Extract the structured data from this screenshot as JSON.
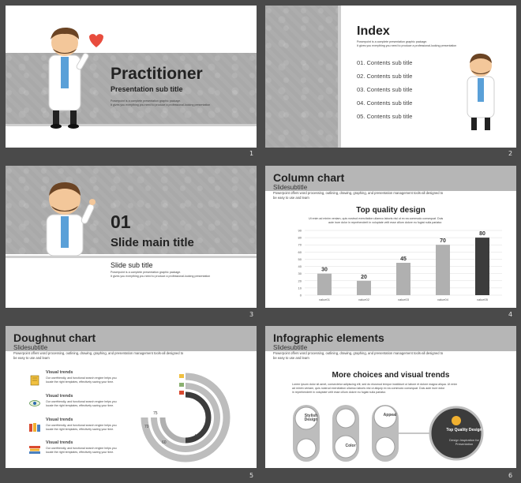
{
  "colors": {
    "background": "#4a4a4a",
    "pattern": "#a9a9a9",
    "bar_light": "#b0b0b0",
    "bar_dark": "#3c3c3c",
    "accent": "#e84c3d"
  },
  "slides": [
    {
      "number": "1",
      "title": "Practitioner",
      "subtitle": "Presentation sub title",
      "tiny1": "Powerpoint is a complete presentation graphic package.",
      "tiny2": "It gives you everything you need to produce a professional-looking presentation"
    },
    {
      "number": "2",
      "title": "Index",
      "tiny1": "Powerpoint is a complete presentation graphic package.",
      "tiny2": "It gives you everything you need to produce a professional-looking presentation",
      "items": [
        "01. Contents sub title",
        "02. Contents sub title",
        "03. Contents sub title",
        "04. Contents sub title",
        "05. Contents sub title"
      ]
    },
    {
      "number": "3",
      "big_number": "01",
      "title": "Slide main title",
      "subtitle": "Slide sub title",
      "tiny1": "Powerpoint is a complete presentation graphic package.",
      "tiny2": "It gives you everything you need to produce a professional-looking presentation"
    },
    {
      "number": "4",
      "title": "Column chart",
      "subtitle": "Slidesubtitle",
      "para1": "Powerpoint offers word processing, outlining, drawing, graphing, and presentation management tools-all designed to",
      "para2": "be easy to use and learn",
      "chart_heading": "Top quality design",
      "chart_text1": "Ut enim ad minim veniam, quis nostrud exercitation ullamco laboris nisi ut ex ea commodo consequat. Duis",
      "chart_text2": "aute irure dolor in reprehenderit in voluptate velit esse cillum dolore eu fugiat nulla pariatur."
    },
    {
      "number": "5",
      "title": "Doughnut chart",
      "subtitle": "Slidesubtitle",
      "para1": "Powerpoint offers word processing, outlining, drawing, graphing, and presentation management tools-all designed to",
      "para2": "be easy to use and learn",
      "trends": [
        {
          "heading": "Visual trends",
          "text1": "Our userfriendly, and functional search engine helps you",
          "text2": "locate the right templates, effectively saving your time.",
          "icon": "notepad-icon"
        },
        {
          "heading": "Visual trends",
          "text1": "Our userfriendly, and functional search engine helps you",
          "text2": "locate the right templates, effectively saving your time.",
          "icon": "eye-icon"
        },
        {
          "heading": "Visual trends",
          "text1": "Our userfriendly, and functional search engine helps you",
          "text2": "locate the right templates, effectively saving your time.",
          "icon": "books-icon"
        },
        {
          "heading": "Visual trends",
          "text1": "Our userfriendly, and functional search engine helps you",
          "text2": "locate the right templates, effectively saving your time.",
          "icon": "stack-books-icon"
        }
      ],
      "ring_labels": [
        "75",
        "70",
        "60",
        "40"
      ]
    },
    {
      "number": "6",
      "title": "Infographic elements",
      "subtitle": "Slidesubtitle",
      "para1": "Powerpoint offers word processing, outlining, drawing, graphing, and presentation management tools-all designed to",
      "para2": "be easy to use and learn",
      "heading": "More choices and visual trends",
      "text1": "Lorem ipsum dolor sit amet, consectetur adipiscing elit, sed do eiusmod tempor incididunt ut labore et dolore magna aliqua. Ut enim",
      "text2": "ad minim veniam, quis nostrud exercitation ullamco laboris nisi ut aliquip ex ea commodo consequat. Duis aute irure dolor",
      "text3": "in reprehenderit in voluptate velit esse cillum dolore eu fugiat nulla pariatur.",
      "pill1": "Stylish Design",
      "pill2": "Color",
      "pill3": "Appeal",
      "circle_title": "Top Quality Design",
      "circle_sub": "Design Inspiration for Presentation"
    }
  ],
  "chart_data": {
    "type": "bar",
    "title": "Top quality design",
    "categories": [
      "value01",
      "value02",
      "value03",
      "value04",
      "value05"
    ],
    "values": [
      30,
      20,
      45,
      70,
      80
    ],
    "ylim": [
      0,
      90
    ],
    "yticks": [
      "0",
      "10",
      "20",
      "30",
      "40",
      "50",
      "60",
      "70",
      "80",
      "90"
    ],
    "grid": true
  }
}
